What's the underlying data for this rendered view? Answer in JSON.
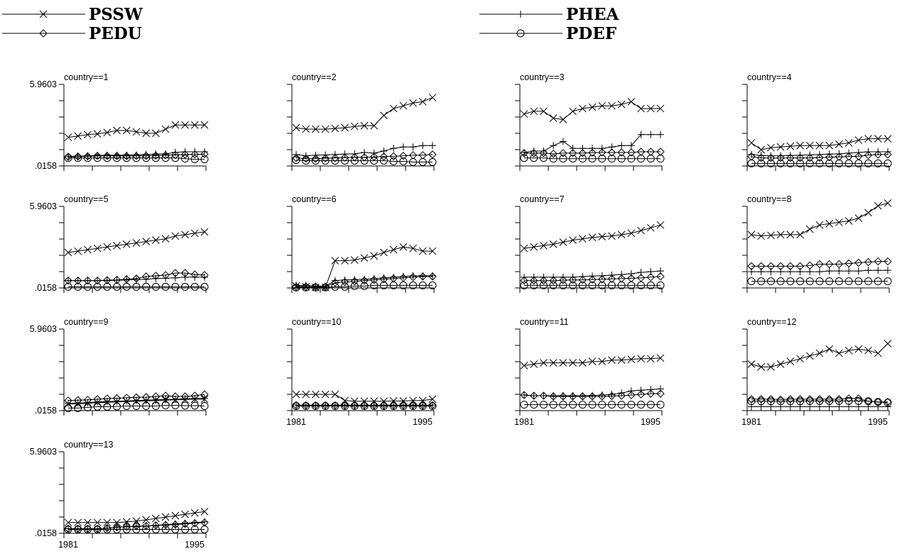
{
  "chart_data": {
    "type": "line",
    "panel_label_prefix": "country==",
    "y_tick_labels": [
      "5.9603",
      ".0158"
    ],
    "ylim": [
      0.0158,
      5.9603
    ],
    "x_tick_labels": [
      "1981",
      "1995"
    ],
    "x": [
      1981,
      1982,
      1983,
      1984,
      1985,
      1986,
      1987,
      1988,
      1989,
      1990,
      1991,
      1992,
      1993,
      1994,
      1995
    ],
    "legend": [
      {
        "name": "PSSW",
        "marker": "x"
      },
      {
        "name": "PHEA",
        "marker": "plus"
      },
      {
        "name": "PEDU",
        "marker": "diamond"
      },
      {
        "name": "PDEF",
        "marker": "circle"
      }
    ],
    "panels": [
      {
        "country": "1",
        "series": {
          "PSSW": [
            2.1,
            2.2,
            2.3,
            2.35,
            2.45,
            2.6,
            2.6,
            2.5,
            2.4,
            2.4,
            2.7,
            3.0,
            3.0,
            3.0,
            3.0
          ],
          "PHEA": [
            0.72,
            0.73,
            0.75,
            0.78,
            0.8,
            0.8,
            0.8,
            0.82,
            0.85,
            0.88,
            0.9,
            1.0,
            1.05,
            1.05,
            1.05
          ],
          "PEDU": [
            0.68,
            0.7,
            0.72,
            0.75,
            0.75,
            0.74,
            0.74,
            0.75,
            0.75,
            0.77,
            0.8,
            0.82,
            0.85,
            0.86,
            0.88
          ],
          "PDEF": [
            0.6,
            0.6,
            0.6,
            0.6,
            0.6,
            0.6,
            0.6,
            0.6,
            0.6,
            0.6,
            0.6,
            0.6,
            0.55,
            0.5,
            0.5
          ]
        }
      },
      {
        "country": "2",
        "series": {
          "PSSW": [
            2.8,
            2.7,
            2.7,
            2.7,
            2.75,
            2.8,
            2.9,
            2.95,
            2.95,
            3.7,
            4.2,
            4.4,
            4.6,
            4.7,
            5.0
          ],
          "PHEA": [
            0.85,
            0.75,
            0.8,
            0.82,
            0.85,
            0.88,
            0.9,
            1.0,
            0.95,
            1.1,
            1.3,
            1.4,
            1.4,
            1.5,
            1.5
          ],
          "PEDU": [
            0.6,
            0.55,
            0.55,
            0.58,
            0.6,
            0.62,
            0.65,
            0.65,
            0.68,
            0.7,
            0.72,
            0.75,
            0.8,
            0.8,
            0.85
          ],
          "PDEF": [
            0.45,
            0.4,
            0.4,
            0.4,
            0.4,
            0.4,
            0.4,
            0.4,
            0.4,
            0.4,
            0.35,
            0.35,
            0.3,
            0.3,
            0.3
          ]
        }
      },
      {
        "country": "3",
        "series": {
          "PSSW": [
            3.8,
            4.0,
            4.0,
            3.5,
            3.4,
            4.0,
            4.2,
            4.3,
            4.4,
            4.4,
            4.5,
            4.7,
            4.2,
            4.2,
            4.2
          ],
          "PHEA": [
            1.0,
            1.1,
            1.1,
            1.5,
            1.8,
            1.3,
            1.3,
            1.3,
            1.3,
            1.4,
            1.5,
            1.5,
            2.3,
            2.3,
            2.3
          ],
          "PEDU": [
            0.95,
            0.95,
            0.95,
            0.9,
            0.95,
            0.95,
            0.95,
            0.98,
            1.0,
            1.0,
            1.0,
            1.0,
            1.05,
            1.05,
            1.05
          ],
          "PDEF": [
            0.6,
            0.6,
            0.6,
            0.55,
            0.55,
            0.55,
            0.55,
            0.55,
            0.55,
            0.55,
            0.55,
            0.55,
            0.55,
            0.55,
            0.55
          ]
        }
      },
      {
        "country": "4",
        "series": {
          "PSSW": [
            1.7,
            1.2,
            1.35,
            1.4,
            1.45,
            1.5,
            1.5,
            1.5,
            1.5,
            1.6,
            1.7,
            1.9,
            2.0,
            2.0,
            2.0
          ],
          "PHEA": [
            0.85,
            0.78,
            0.75,
            0.75,
            0.78,
            0.8,
            0.82,
            0.85,
            0.88,
            0.9,
            0.95,
            1.0,
            1.05,
            1.05,
            1.05
          ],
          "PEDU": [
            0.7,
            0.6,
            0.6,
            0.6,
            0.6,
            0.6,
            0.6,
            0.62,
            0.65,
            0.68,
            0.7,
            0.72,
            0.8,
            0.85,
            0.85
          ],
          "PDEF": [
            0.2,
            0.2,
            0.2,
            0.2,
            0.2,
            0.2,
            0.2,
            0.2,
            0.2,
            0.2,
            0.2,
            0.2,
            0.2,
            0.2,
            0.2
          ]
        }
      },
      {
        "country": "5",
        "series": {
          "PSSW": [
            2.6,
            2.7,
            2.8,
            2.9,
            3.0,
            3.1,
            3.2,
            3.3,
            3.4,
            3.5,
            3.6,
            3.8,
            3.9,
            4.0,
            4.1
          ],
          "PHEA": [
            0.55,
            0.55,
            0.55,
            0.55,
            0.55,
            0.58,
            0.6,
            0.62,
            0.65,
            0.7,
            0.72,
            0.75,
            0.8,
            0.8,
            0.8
          ],
          "PEDU": [
            0.55,
            0.55,
            0.55,
            0.55,
            0.58,
            0.6,
            0.65,
            0.7,
            0.85,
            0.9,
            0.95,
            1.1,
            1.1,
            1.0,
            0.95
          ],
          "PDEF": [
            0.1,
            0.1,
            0.1,
            0.1,
            0.1,
            0.1,
            0.1,
            0.1,
            0.1,
            0.1,
            0.1,
            0.1,
            0.1,
            0.1,
            0.1
          ]
        }
      },
      {
        "country": "6",
        "series": {
          "PSSW": [
            0.15,
            0.1,
            0.05,
            0.05,
            2.0,
            2.0,
            2.05,
            2.2,
            2.35,
            2.6,
            2.8,
            3.0,
            2.9,
            2.7,
            2.7
          ],
          "PHEA": [
            0.2,
            0.2,
            0.15,
            0.15,
            0.55,
            0.6,
            0.62,
            0.65,
            0.7,
            0.75,
            0.8,
            0.85,
            0.9,
            0.9,
            0.9
          ],
          "PEDU": [
            0.1,
            0.1,
            0.1,
            0.1,
            0.4,
            0.45,
            0.5,
            0.55,
            0.6,
            0.65,
            0.7,
            0.75,
            0.8,
            0.85,
            0.85
          ],
          "PDEF": [
            0.05,
            0.05,
            0.05,
            0.05,
            0.1,
            0.1,
            0.15,
            0.15,
            0.2,
            0.2,
            0.2,
            0.2,
            0.2,
            0.2,
            0.2
          ]
        }
      },
      {
        "country": "7",
        "series": {
          "PSSW": [
            2.9,
            3.0,
            3.1,
            3.2,
            3.35,
            3.5,
            3.6,
            3.7,
            3.75,
            3.8,
            3.9,
            4.0,
            4.2,
            4.4,
            4.6
          ],
          "PHEA": [
            0.8,
            0.8,
            0.8,
            0.8,
            0.8,
            0.8,
            0.85,
            0.88,
            0.9,
            0.95,
            1.0,
            1.05,
            1.15,
            1.2,
            1.25
          ],
          "PEDU": [
            0.55,
            0.55,
            0.55,
            0.55,
            0.58,
            0.6,
            0.6,
            0.62,
            0.65,
            0.68,
            0.7,
            0.72,
            0.75,
            0.8,
            0.85
          ],
          "PDEF": [
            0.2,
            0.2,
            0.2,
            0.2,
            0.2,
            0.2,
            0.2,
            0.2,
            0.2,
            0.2,
            0.2,
            0.2,
            0.2,
            0.2,
            0.2
          ]
        }
      },
      {
        "country": "8",
        "series": {
          "PSSW": [
            3.9,
            3.8,
            3.85,
            3.9,
            3.9,
            3.9,
            4.3,
            4.6,
            4.7,
            4.8,
            4.9,
            5.1,
            5.5,
            6.0,
            6.2
          ],
          "PHEA": [
            1.2,
            1.2,
            1.2,
            1.2,
            1.2,
            1.2,
            1.2,
            1.2,
            1.25,
            1.25,
            1.25,
            1.25,
            1.3,
            1.3,
            1.3
          ],
          "PEDU": [
            1.6,
            1.6,
            1.6,
            1.6,
            1.6,
            1.6,
            1.65,
            1.75,
            1.75,
            1.75,
            1.8,
            1.85,
            1.9,
            1.95,
            1.95
          ],
          "PDEF": [
            0.5,
            0.5,
            0.5,
            0.5,
            0.5,
            0.5,
            0.5,
            0.5,
            0.5,
            0.5,
            0.5,
            0.5,
            0.5,
            0.5,
            0.5
          ]
        }
      },
      {
        "country": "9",
        "series": {
          "PSSW": [
            0.5,
            0.5,
            0.55,
            0.6,
            0.62,
            0.65,
            0.68,
            0.7,
            0.72,
            0.75,
            0.78,
            0.8,
            0.82,
            0.85,
            0.85
          ],
          "PHEA": [
            0.55,
            0.58,
            0.6,
            0.65,
            0.68,
            0.7,
            0.72,
            0.75,
            0.78,
            0.8,
            0.82,
            0.85,
            0.88,
            0.9,
            0.9
          ],
          "PEDU": [
            0.75,
            0.78,
            0.8,
            0.85,
            0.9,
            0.92,
            0.95,
            0.98,
            1.0,
            1.05,
            1.1,
            1.05,
            1.05,
            1.1,
            1.2
          ],
          "PDEF": [
            0.2,
            0.2,
            0.25,
            0.3,
            0.3,
            0.32,
            0.35,
            0.35,
            0.35,
            0.35,
            0.4,
            0.4,
            0.38,
            0.38,
            0.35
          ]
        }
      },
      {
        "country": "10",
        "series": {
          "PSSW": [
            1.2,
            1.2,
            1.2,
            1.2,
            1.2,
            0.75,
            0.7,
            0.7,
            0.7,
            0.7,
            0.72,
            0.72,
            0.75,
            0.75,
            0.85
          ],
          "PHEA": [
            0.42,
            0.42,
            0.42,
            0.42,
            0.42,
            0.42,
            0.42,
            0.42,
            0.42,
            0.42,
            0.42,
            0.42,
            0.42,
            0.42,
            0.42
          ],
          "PEDU": [
            0.4,
            0.4,
            0.4,
            0.4,
            0.4,
            0.4,
            0.4,
            0.4,
            0.4,
            0.4,
            0.4,
            0.4,
            0.4,
            0.4,
            0.4
          ],
          "PDEF": [
            0.35,
            0.35,
            0.35,
            0.35,
            0.35,
            0.35,
            0.35,
            0.35,
            0.35,
            0.35,
            0.35,
            0.35,
            0.35,
            0.35,
            0.35
          ]
        }
      },
      {
        "country": "11",
        "series": {
          "PSSW": [
            3.3,
            3.4,
            3.5,
            3.5,
            3.5,
            3.5,
            3.5,
            3.6,
            3.6,
            3.7,
            3.7,
            3.75,
            3.8,
            3.8,
            3.85
          ],
          "PHEA": [
            1.15,
            1.1,
            1.1,
            1.1,
            1.1,
            1.1,
            1.1,
            1.12,
            1.15,
            1.2,
            1.3,
            1.45,
            1.5,
            1.55,
            1.6
          ],
          "PEDU": [
            1.15,
            1.1,
            1.1,
            1.05,
            1.05,
            1.05,
            1.05,
            1.05,
            1.05,
            1.08,
            1.1,
            1.15,
            1.2,
            1.25,
            1.25
          ],
          "PDEF": [
            0.45,
            0.45,
            0.45,
            0.45,
            0.45,
            0.45,
            0.45,
            0.45,
            0.45,
            0.45,
            0.45,
            0.45,
            0.45,
            0.45,
            0.45
          ]
        }
      },
      {
        "country": "12",
        "series": {
          "PSSW": [
            3.4,
            3.2,
            3.2,
            3.4,
            3.6,
            3.8,
            4.0,
            4.2,
            4.5,
            4.2,
            4.4,
            4.5,
            4.4,
            4.2,
            4.9
          ],
          "PHEA": [
            0.3,
            0.3,
            0.3,
            0.3,
            0.3,
            0.3,
            0.3,
            0.3,
            0.3,
            0.3,
            0.3,
            0.3,
            0.3,
            0.3,
            0.3
          ],
          "PEDU": [
            0.85,
            0.85,
            0.85,
            0.82,
            0.85,
            0.85,
            0.85,
            0.85,
            0.85,
            0.85,
            0.9,
            0.9,
            0.7,
            0.65,
            0.65
          ],
          "PDEF": [
            0.7,
            0.7,
            0.7,
            0.7,
            0.7,
            0.7,
            0.72,
            0.72,
            0.72,
            0.72,
            0.72,
            0.72,
            0.7,
            0.65,
            0.6
          ]
        }
      },
      {
        "country": "13",
        "series": {
          "PSSW": [
            0.8,
            0.8,
            0.8,
            0.8,
            0.8,
            0.8,
            0.85,
            0.9,
            1.0,
            1.1,
            1.2,
            1.3,
            1.4,
            1.5,
            1.6
          ],
          "PHEA": [
            0.35,
            0.35,
            0.35,
            0.35,
            0.4,
            0.45,
            0.5,
            0.5,
            0.55,
            0.6,
            0.65,
            0.7,
            0.75,
            0.8,
            0.85
          ],
          "PEDU": [
            0.35,
            0.35,
            0.35,
            0.35,
            0.4,
            0.45,
            0.5,
            0.55,
            0.55,
            0.6,
            0.62,
            0.65,
            0.7,
            0.75,
            0.8
          ],
          "PDEF": [
            0.3,
            0.3,
            0.3,
            0.3,
            0.3,
            0.3,
            0.3,
            0.3,
            0.3,
            0.3,
            0.3,
            0.3,
            0.3,
            0.3,
            0.3
          ]
        }
      }
    ]
  }
}
